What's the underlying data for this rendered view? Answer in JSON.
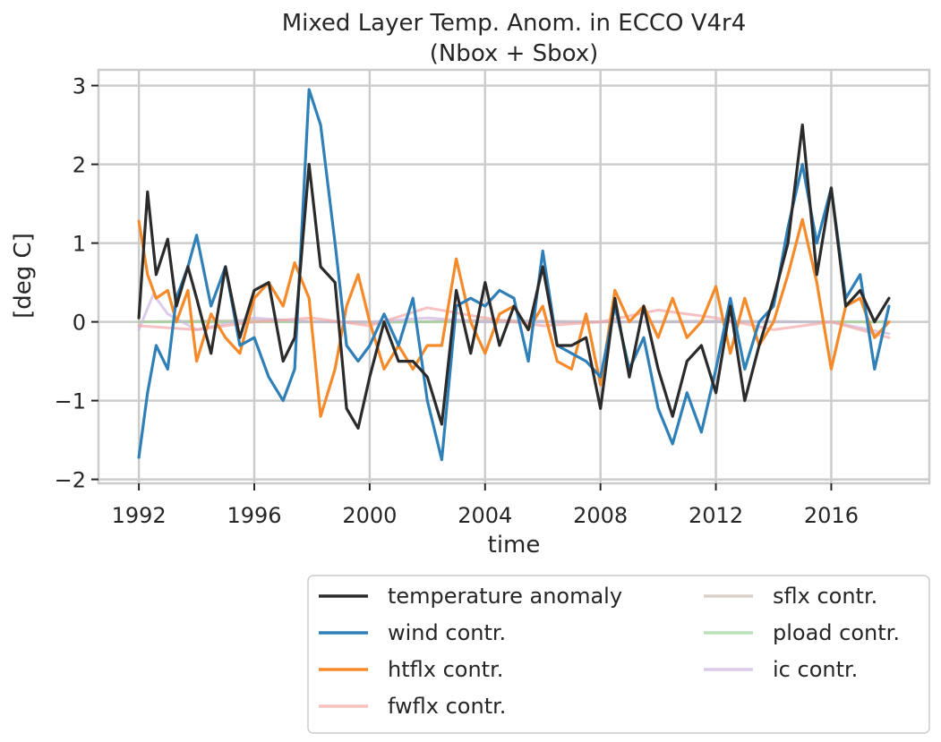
{
  "chart_data": {
    "type": "line",
    "title": "Mixed Layer Temp. Anom. in ECCO V4r4",
    "subtitle": "(Nbox + Sbox)",
    "xlabel": "time",
    "ylabel": "[deg C]",
    "xlim": [
      1990.6,
      2019.4
    ],
    "ylim": [
      -2.05,
      3.2
    ],
    "xticks": [
      1992,
      1996,
      2000,
      2004,
      2008,
      2012,
      2016
    ],
    "yticks": [
      -2,
      -1,
      0,
      1,
      2,
      3
    ],
    "ytick_labels": [
      "−2",
      "−1",
      "0",
      "1",
      "2",
      "3"
    ],
    "grid": true,
    "legend_position": "below plot, right",
    "series": [
      {
        "name": "temperature anomaly",
        "color": "#2b2b2b",
        "opacity": 1.0,
        "x": [
          1992.0,
          1992.3,
          1992.6,
          1993.0,
          1993.3,
          1993.7,
          1994.0,
          1994.5,
          1995.0,
          1995.5,
          1996.0,
          1996.5,
          1997.0,
          1997.4,
          1997.9,
          1998.3,
          1998.8,
          1999.2,
          1999.6,
          2000.0,
          2000.5,
          2001.0,
          2001.5,
          2002.0,
          2002.5,
          2003.0,
          2003.5,
          2004.0,
          2004.5,
          2005.0,
          2005.5,
          2006.0,
          2006.5,
          2007.0,
          2007.5,
          2008.0,
          2008.5,
          2009.0,
          2009.5,
          2010.0,
          2010.5,
          2011.0,
          2011.5,
          2012.0,
          2012.5,
          2013.0,
          2013.5,
          2014.0,
          2014.5,
          2015.0,
          2015.5,
          2016.0,
          2016.5,
          2017.0,
          2017.5,
          2018.0
        ],
        "y": [
          0.05,
          1.65,
          0.6,
          1.05,
          0.2,
          0.7,
          0.3,
          -0.4,
          0.7,
          -0.2,
          0.4,
          0.5,
          -0.5,
          -0.2,
          2.0,
          0.7,
          0.5,
          -1.1,
          -1.35,
          -0.7,
          0.0,
          -0.5,
          -0.5,
          -0.7,
          -1.3,
          0.4,
          -0.4,
          0.5,
          -0.3,
          0.2,
          -0.1,
          0.7,
          -0.3,
          -0.3,
          -0.2,
          -1.1,
          0.3,
          -0.7,
          0.2,
          -0.6,
          -1.2,
          -0.5,
          -0.3,
          -0.9,
          0.2,
          -1.0,
          -0.3,
          0.3,
          1.0,
          2.5,
          0.6,
          1.7,
          0.2,
          0.4,
          0.0,
          0.3
        ]
      },
      {
        "name": "wind contr.",
        "color": "#2f7fb8",
        "opacity": 1.0,
        "x": [
          1992.0,
          1992.3,
          1992.6,
          1993.0,
          1993.3,
          1993.7,
          1994.0,
          1994.5,
          1995.0,
          1995.5,
          1996.0,
          1996.5,
          1997.0,
          1997.4,
          1997.9,
          1998.3,
          1998.8,
          1999.2,
          1999.6,
          2000.0,
          2000.5,
          2001.0,
          2001.5,
          2002.0,
          2002.5,
          2003.0,
          2003.5,
          2004.0,
          2004.5,
          2005.0,
          2005.5,
          2006.0,
          2006.5,
          2007.0,
          2007.5,
          2008.0,
          2008.5,
          2009.0,
          2009.5,
          2010.0,
          2010.5,
          2011.0,
          2011.5,
          2012.0,
          2012.5,
          2013.0,
          2013.5,
          2014.0,
          2014.5,
          2015.0,
          2015.5,
          2016.0,
          2016.5,
          2017.0,
          2017.5,
          2018.0
        ],
        "y": [
          -1.72,
          -0.9,
          -0.3,
          -0.6,
          0.3,
          0.7,
          1.1,
          0.2,
          0.7,
          -0.3,
          -0.2,
          -0.7,
          -1.0,
          -0.6,
          2.95,
          2.5,
          1.0,
          -0.3,
          -0.5,
          -0.3,
          0.1,
          -0.3,
          0.3,
          -1.0,
          -1.75,
          0.2,
          0.3,
          0.2,
          0.4,
          0.3,
          -0.5,
          0.9,
          -0.3,
          -0.4,
          -0.5,
          -0.7,
          0.2,
          -0.6,
          -0.2,
          -1.1,
          -1.55,
          -0.9,
          -1.4,
          -0.6,
          0.3,
          -0.6,
          0.0,
          0.2,
          1.2,
          2.0,
          1.0,
          1.7,
          0.3,
          0.6,
          -0.6,
          0.2
        ]
      },
      {
        "name": "htflx contr.",
        "color": "#f58a2a",
        "opacity": 1.0,
        "x": [
          1992.0,
          1992.3,
          1992.6,
          1993.0,
          1993.3,
          1993.7,
          1994.0,
          1994.5,
          1995.0,
          1995.5,
          1996.0,
          1996.5,
          1997.0,
          1997.4,
          1997.9,
          1998.3,
          1998.8,
          1999.2,
          1999.6,
          2000.0,
          2000.5,
          2001.0,
          2001.5,
          2002.0,
          2002.5,
          2003.0,
          2003.5,
          2004.0,
          2004.5,
          2005.0,
          2005.5,
          2006.0,
          2006.5,
          2007.0,
          2007.5,
          2008.0,
          2008.5,
          2009.0,
          2009.5,
          2010.0,
          2010.5,
          2011.0,
          2011.5,
          2012.0,
          2012.5,
          2013.0,
          2013.5,
          2014.0,
          2014.5,
          2015.0,
          2015.5,
          2016.0,
          2016.5,
          2017.0,
          2017.5,
          2018.0
        ],
        "y": [
          1.28,
          0.6,
          0.3,
          0.4,
          0.0,
          0.4,
          -0.5,
          0.1,
          -0.2,
          -0.4,
          0.3,
          0.5,
          0.2,
          0.75,
          0.3,
          -1.2,
          -0.6,
          0.2,
          0.6,
          0.0,
          -0.6,
          -0.3,
          -0.6,
          -0.3,
          -0.3,
          0.8,
          0.0,
          -0.4,
          0.1,
          0.2,
          -0.1,
          0.2,
          -0.5,
          -0.6,
          0.1,
          -0.8,
          0.4,
          0.0,
          0.2,
          -0.2,
          0.3,
          -0.2,
          0.0,
          0.45,
          -0.4,
          0.3,
          -0.3,
          0.0,
          0.6,
          1.3,
          0.5,
          -0.6,
          0.2,
          0.3,
          -0.2,
          0.0
        ]
      },
      {
        "name": "fwflx contr.",
        "color": "#f2a7a5",
        "opacity": 0.7,
        "x": [
          1992,
          1994,
          1996,
          1998,
          2000,
          2002,
          2004,
          2006,
          2008,
          2010,
          2012,
          2014,
          2016,
          2018
        ],
        "y": [
          -0.05,
          -0.1,
          0.0,
          0.05,
          -0.05,
          0.18,
          0.05,
          -0.05,
          0.0,
          0.15,
          0.05,
          -0.1,
          0.0,
          -0.2
        ]
      },
      {
        "name": "sflx contr.",
        "color": "#cbbcb3",
        "opacity": 0.7,
        "x": [
          1992,
          1996,
          2000,
          2004,
          2008,
          2012,
          2016,
          2018
        ],
        "y": [
          0.0,
          0.02,
          -0.01,
          0.02,
          0.0,
          0.01,
          0.0,
          0.0
        ]
      },
      {
        "name": "pload contr.",
        "color": "#9fd39a",
        "opacity": 0.7,
        "x": [
          1992,
          1996,
          2000,
          2004,
          2008,
          2012,
          2016,
          2018
        ],
        "y": [
          0.0,
          0.0,
          0.0,
          0.0,
          0.0,
          0.0,
          0.0,
          0.0
        ]
      },
      {
        "name": "ic contr.",
        "color": "#cdb6e0",
        "opacity": 0.7,
        "x": [
          1992,
          1992.5,
          1993,
          1994,
          1996,
          1998,
          2000,
          2002,
          2004,
          2008,
          2012,
          2016,
          2018
        ],
        "y": [
          -0.1,
          0.35,
          0.1,
          -0.1,
          0.05,
          0.0,
          0.0,
          0.05,
          0.0,
          0.0,
          0.0,
          0.0,
          -0.15
        ]
      }
    ]
  }
}
